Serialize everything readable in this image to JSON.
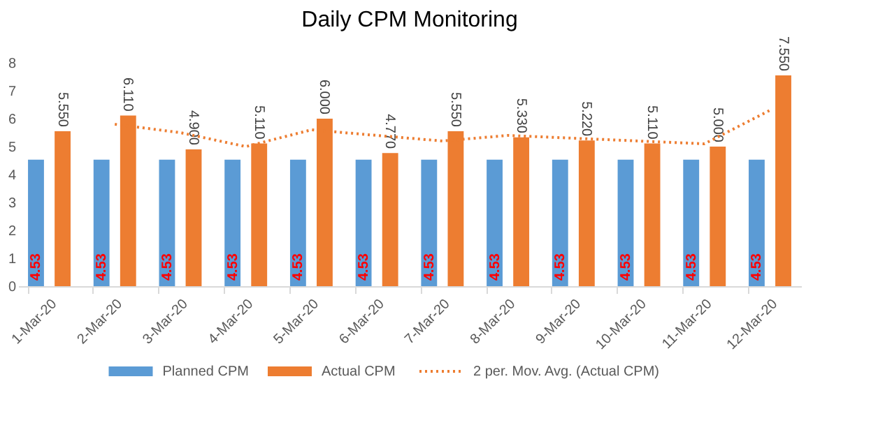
{
  "chart_data": {
    "type": "bar",
    "title": "Daily CPM Monitoring",
    "categories": [
      "1-Mar-20",
      "2-Mar-20",
      "3-Mar-20",
      "4-Mar-20",
      "5-Mar-20",
      "6-Mar-20",
      "7-Mar-20",
      "8-Mar-20",
      "9-Mar-20",
      "10-Mar-20",
      "11-Mar-20",
      "12-Mar-20"
    ],
    "ylim": [
      0,
      8
    ],
    "yticks": [
      0,
      1,
      2,
      3,
      4,
      5,
      6,
      7,
      8
    ],
    "grid": false,
    "legend": "bottom",
    "series": [
      {
        "name": "Planned CPM",
        "color": "#5b9bd5",
        "values": [
          4.53,
          4.53,
          4.53,
          4.53,
          4.53,
          4.53,
          4.53,
          4.53,
          4.53,
          4.53,
          4.53,
          4.53
        ],
        "value_labels": [
          "4.53",
          "4.53",
          "4.53",
          "4.53",
          "4.53",
          "4.53",
          "4.53",
          "4.53",
          "4.53",
          "4.53",
          "4.53",
          "4.53"
        ]
      },
      {
        "name": "Actual CPM",
        "color": "#ed7d31",
        "values": [
          5.55,
          6.11,
          4.9,
          5.11,
          6.0,
          4.77,
          5.55,
          5.33,
          5.22,
          5.11,
          5.0,
          7.55
        ],
        "value_labels": [
          "5.550",
          "6.110",
          "4.900",
          "5.110",
          "6.000",
          "4.770",
          "5.550",
          "5.330",
          "5.220",
          "5.110",
          "5.000",
          "7.550"
        ]
      },
      {
        "name": "2 per. Mov. Avg. (Actual CPM)",
        "type": "line",
        "line_style": "dotted",
        "color": "#ed7d31",
        "values": [
          null,
          5.8,
          5.5,
          5.0,
          5.6,
          5.4,
          5.2,
          5.4,
          5.3,
          5.2,
          5.1,
          6.3
        ]
      }
    ]
  }
}
